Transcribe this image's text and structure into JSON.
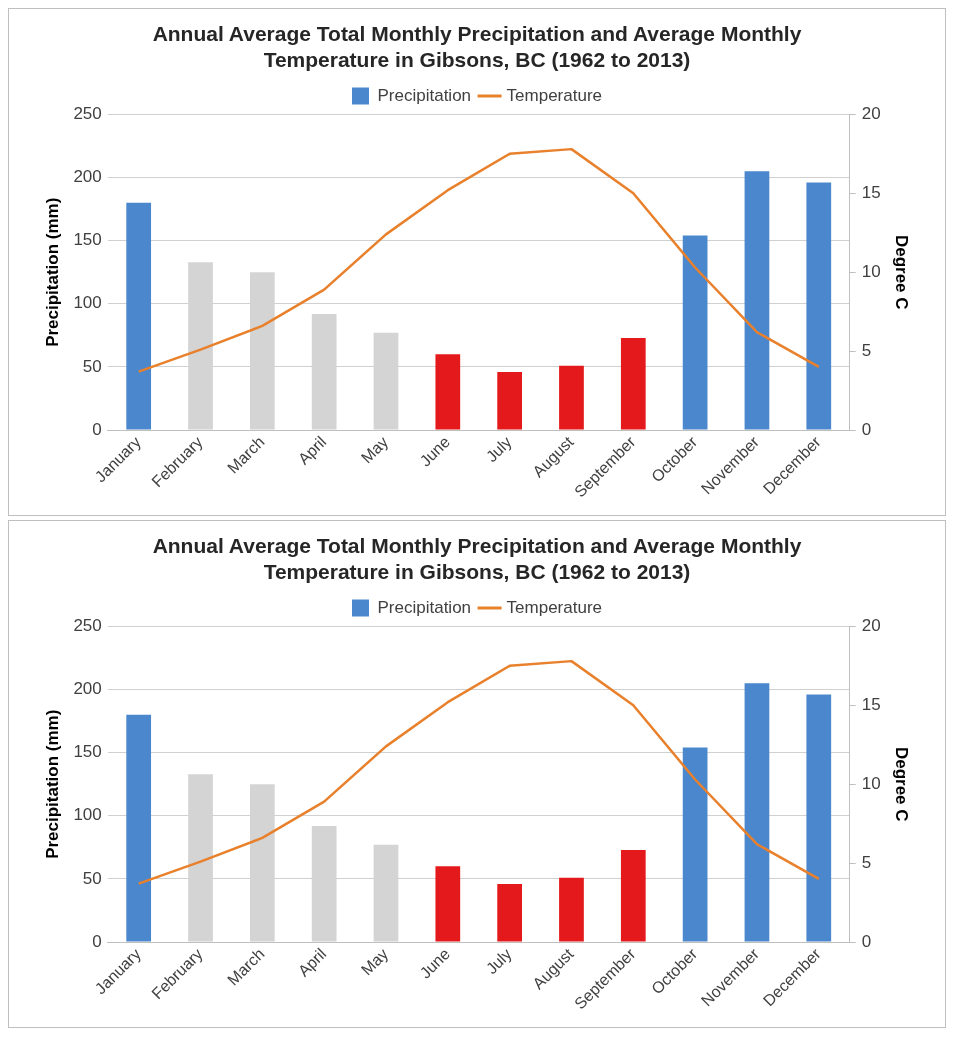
{
  "chart_data": [
    {
      "type": "bar",
      "title": "Annual Average Total Monthly Precipitation and Average Monthly Temperature in Gibsons, BC (1962 to 2013)",
      "ylabel": "Precipitation (mm)",
      "y2label": "Degree C",
      "categories": [
        "January",
        "February",
        "March",
        "April",
        "May",
        "June",
        "July",
        "August",
        "September",
        "October",
        "November",
        "December"
      ],
      "series": [
        {
          "name": "Precipitation",
          "colors": [
            "#4a87cc",
            "#d4d4d4",
            "#d4d4d4",
            "#d4d4d4",
            "#d4d4d4",
            "#e4191b",
            "#e4191b",
            "#e4191b",
            "#e4191b",
            "#4a87cc",
            "#4a87cc",
            "#4a87cc"
          ],
          "values": [
            180,
            133,
            125,
            92,
            77,
            60,
            46,
            51,
            73,
            154,
            205,
            196
          ]
        },
        {
          "name": "Temperature",
          "type": "line",
          "axis": "y2",
          "color": "#e8802c",
          "values": [
            3.7,
            5.1,
            6.6,
            8.9,
            12.4,
            15.2,
            17.5,
            17.8,
            15.0,
            10.3,
            6.2,
            4.0
          ]
        }
      ],
      "ylim": [
        0,
        250
      ],
      "yticks": [
        0,
        50,
        100,
        150,
        200,
        250
      ],
      "y2lim": [
        0,
        20
      ],
      "y2ticks": [
        0,
        5,
        10,
        15,
        20
      ],
      "grid": "y",
      "legend": "top",
      "marker": "none"
    },
    {
      "type": "bar",
      "title": "Annual Average Total Monthly Precipitation and Average Monthly Temperature in Gibsons, BC (1962 to 2013)",
      "ylabel": "Precipitation (mm)",
      "y2label": "Degree C",
      "categories": [
        "January",
        "February",
        "March",
        "April",
        "May",
        "June",
        "July",
        "August",
        "September",
        "October",
        "November",
        "December"
      ],
      "series": [
        {
          "name": "Precipitation",
          "colors": [
            "#4a87cc",
            "#d4d4d4",
            "#d4d4d4",
            "#d4d4d4",
            "#d4d4d4",
            "#e4191b",
            "#e4191b",
            "#e4191b",
            "#e4191b",
            "#4a87cc",
            "#4a87cc",
            "#4a87cc"
          ],
          "values": [
            180,
            133,
            125,
            92,
            77,
            60,
            46,
            51,
            73,
            154,
            205,
            196
          ]
        },
        {
          "name": "Temperature",
          "type": "line",
          "axis": "y2",
          "color": "#e8802c",
          "values": [
            3.7,
            5.1,
            6.6,
            8.9,
            12.4,
            15.2,
            17.5,
            17.8,
            15.0,
            10.3,
            6.2,
            4.0
          ]
        }
      ],
      "ylim": [
        0,
        250
      ],
      "yticks": [
        0,
        50,
        100,
        150,
        200,
        250
      ],
      "y2lim": [
        0,
        20
      ],
      "y2ticks": [
        0,
        5,
        10,
        15,
        20
      ],
      "grid": "y",
      "legend": "top",
      "marker": "none"
    }
  ]
}
